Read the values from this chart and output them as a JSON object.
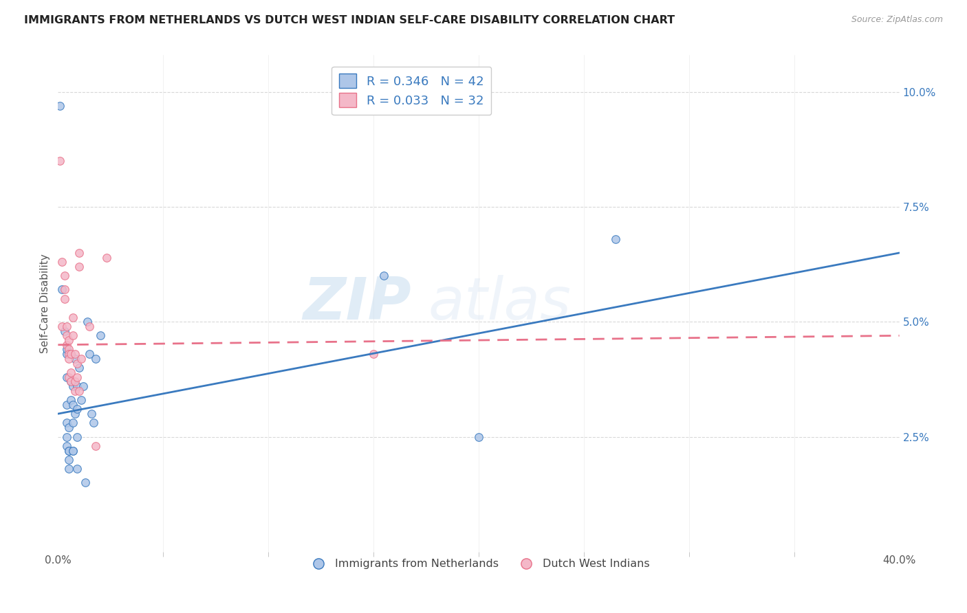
{
  "title": "IMMIGRANTS FROM NETHERLANDS VS DUTCH WEST INDIAN SELF-CARE DISABILITY CORRELATION CHART",
  "source": "Source: ZipAtlas.com",
  "ylabel": "Self-Care Disability",
  "ylabel_right_labels": [
    "2.5%",
    "5.0%",
    "7.5%",
    "10.0%"
  ],
  "ylabel_right_values": [
    0.025,
    0.05,
    0.075,
    0.1
  ],
  "legend_label_blue": "R = 0.346   N = 42",
  "legend_label_pink": "R = 0.033   N = 32",
  "legend_bottom_blue": "Immigrants from Netherlands",
  "legend_bottom_pink": "Dutch West Indians",
  "x_min": 0.0,
  "x_max": 0.4,
  "y_min": 0.0,
  "y_max": 0.108,
  "blue_regression": [
    0.03,
    0.065
  ],
  "pink_regression": [
    0.045,
    0.047
  ],
  "blue_dots": [
    [
      0.001,
      0.097
    ],
    [
      0.002,
      0.057
    ],
    [
      0.003,
      0.048
    ],
    [
      0.004,
      0.043
    ],
    [
      0.004,
      0.044
    ],
    [
      0.004,
      0.038
    ],
    [
      0.004,
      0.032
    ],
    [
      0.004,
      0.028
    ],
    [
      0.004,
      0.025
    ],
    [
      0.004,
      0.023
    ],
    [
      0.005,
      0.022
    ],
    [
      0.005,
      0.02
    ],
    [
      0.005,
      0.018
    ],
    [
      0.005,
      0.027
    ],
    [
      0.005,
      0.022
    ],
    [
      0.006,
      0.043
    ],
    [
      0.006,
      0.037
    ],
    [
      0.006,
      0.033
    ],
    [
      0.007,
      0.028
    ],
    [
      0.007,
      0.022
    ],
    [
      0.007,
      0.036
    ],
    [
      0.007,
      0.032
    ],
    [
      0.007,
      0.022
    ],
    [
      0.008,
      0.042
    ],
    [
      0.008,
      0.03
    ],
    [
      0.009,
      0.036
    ],
    [
      0.009,
      0.031
    ],
    [
      0.009,
      0.025
    ],
    [
      0.009,
      0.018
    ],
    [
      0.01,
      0.04
    ],
    [
      0.011,
      0.033
    ],
    [
      0.012,
      0.036
    ],
    [
      0.013,
      0.015
    ],
    [
      0.014,
      0.05
    ],
    [
      0.015,
      0.043
    ],
    [
      0.016,
      0.03
    ],
    [
      0.017,
      0.028
    ],
    [
      0.018,
      0.042
    ],
    [
      0.02,
      0.047
    ],
    [
      0.155,
      0.06
    ],
    [
      0.2,
      0.025
    ],
    [
      0.265,
      0.068
    ]
  ],
  "pink_dots": [
    [
      0.001,
      0.085
    ],
    [
      0.002,
      0.063
    ],
    [
      0.002,
      0.049
    ],
    [
      0.003,
      0.06
    ],
    [
      0.003,
      0.057
    ],
    [
      0.003,
      0.055
    ],
    [
      0.004,
      0.049
    ],
    [
      0.004,
      0.047
    ],
    [
      0.004,
      0.045
    ],
    [
      0.005,
      0.046
    ],
    [
      0.005,
      0.044
    ],
    [
      0.005,
      0.043
    ],
    [
      0.005,
      0.042
    ],
    [
      0.005,
      0.038
    ],
    [
      0.006,
      0.043
    ],
    [
      0.006,
      0.039
    ],
    [
      0.006,
      0.037
    ],
    [
      0.007,
      0.051
    ],
    [
      0.007,
      0.047
    ],
    [
      0.008,
      0.043
    ],
    [
      0.008,
      0.037
    ],
    [
      0.008,
      0.035
    ],
    [
      0.009,
      0.041
    ],
    [
      0.009,
      0.038
    ],
    [
      0.01,
      0.065
    ],
    [
      0.01,
      0.062
    ],
    [
      0.01,
      0.035
    ],
    [
      0.011,
      0.042
    ],
    [
      0.015,
      0.049
    ],
    [
      0.018,
      0.023
    ],
    [
      0.023,
      0.064
    ],
    [
      0.15,
      0.043
    ]
  ],
  "blue_color": "#aec6e8",
  "pink_color": "#f4b8c8",
  "blue_line_color": "#3a7abf",
  "pink_line_color": "#e8728a",
  "grid_color": "#d8d8d8",
  "watermark_text": "ZIP",
  "watermark_text2": "atlas",
  "dot_size": 70
}
